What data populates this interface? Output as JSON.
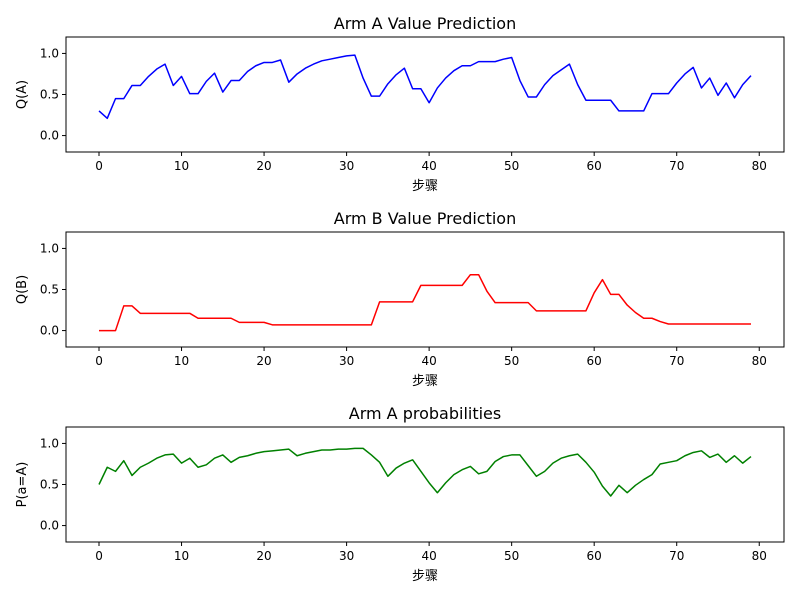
{
  "chart_data": [
    {
      "type": "line",
      "title": "Arm A Value Prediction",
      "xlabel": "步骤",
      "ylabel": "Q(A)",
      "xlim": [
        -4,
        83
      ],
      "ylim": [
        -0.2,
        1.2
      ],
      "xticks": [
        0,
        10,
        20,
        30,
        40,
        50,
        60,
        70,
        80
      ],
      "yticks": [
        0.0,
        0.5,
        1.0
      ],
      "grid": false,
      "series": [
        {
          "color": "#0000ff",
          "x": [
            0,
            1,
            2,
            3,
            4,
            5,
            6,
            7,
            8,
            9,
            10,
            11,
            12,
            13,
            14,
            15,
            16,
            17,
            18,
            19,
            20,
            21,
            22,
            23,
            24,
            25,
            26,
            27,
            28,
            29,
            30,
            31,
            32,
            33,
            34,
            35,
            36,
            37,
            38,
            39,
            40,
            41,
            42,
            43,
            44,
            45,
            46,
            47,
            48,
            49,
            50,
            51,
            52,
            53,
            54,
            55,
            56,
            57,
            58,
            59,
            60,
            61,
            62,
            63,
            64,
            65,
            66,
            67,
            68,
            69,
            70,
            71,
            72,
            73,
            74,
            75,
            76,
            77,
            78,
            79
          ],
          "values": [
            0.3,
            0.21,
            0.45,
            0.45,
            0.61,
            0.61,
            0.72,
            0.81,
            0.87,
            0.61,
            0.72,
            0.51,
            0.51,
            0.66,
            0.76,
            0.53,
            0.67,
            0.67,
            0.78,
            0.85,
            0.89,
            0.89,
            0.92,
            0.65,
            0.75,
            0.82,
            0.87,
            0.91,
            0.93,
            0.95,
            0.97,
            0.98,
            0.7,
            0.48,
            0.48,
            0.63,
            0.74,
            0.82,
            0.57,
            0.57,
            0.4,
            0.58,
            0.7,
            0.79,
            0.85,
            0.85,
            0.9,
            0.9,
            0.9,
            0.93,
            0.95,
            0.67,
            0.47,
            0.47,
            0.62,
            0.73,
            0.8,
            0.87,
            0.62,
            0.43,
            0.43,
            0.43,
            0.43,
            0.3,
            0.3,
            0.3,
            0.3,
            0.51,
            0.51,
            0.51,
            0.64,
            0.75,
            0.83,
            0.58,
            0.7,
            0.49,
            0.64,
            0.46,
            0.62,
            0.73
          ]
        }
      ]
    },
    {
      "type": "line",
      "title": "Arm B Value Prediction",
      "xlabel": "步骤",
      "ylabel": "Q(B)",
      "xlim": [
        -4,
        83
      ],
      "ylim": [
        -0.2,
        1.2
      ],
      "xticks": [
        0,
        10,
        20,
        30,
        40,
        50,
        60,
        70,
        80
      ],
      "yticks": [
        0.0,
        0.5,
        1.0
      ],
      "grid": false,
      "series": [
        {
          "color": "#ff0000",
          "x": [
            0,
            1,
            2,
            3,
            4,
            5,
            6,
            7,
            8,
            9,
            10,
            11,
            12,
            13,
            14,
            15,
            16,
            17,
            18,
            19,
            20,
            21,
            22,
            23,
            24,
            25,
            26,
            27,
            28,
            29,
            30,
            31,
            32,
            33,
            34,
            35,
            36,
            37,
            38,
            39,
            40,
            41,
            42,
            43,
            44,
            45,
            46,
            47,
            48,
            49,
            50,
            51,
            52,
            53,
            54,
            55,
            56,
            57,
            58,
            59,
            60,
            61,
            62,
            63,
            64,
            65,
            66,
            67,
            68,
            69,
            70,
            71,
            72,
            73,
            74,
            75,
            76,
            77,
            78,
            79
          ],
          "values": [
            0.0,
            0.0,
            0.0,
            0.3,
            0.3,
            0.21,
            0.21,
            0.21,
            0.21,
            0.21,
            0.21,
            0.21,
            0.15,
            0.15,
            0.15,
            0.15,
            0.15,
            0.1,
            0.1,
            0.1,
            0.1,
            0.07,
            0.07,
            0.07,
            0.07,
            0.07,
            0.07,
            0.07,
            0.07,
            0.07,
            0.07,
            0.07,
            0.07,
            0.07,
            0.35,
            0.35,
            0.35,
            0.35,
            0.35,
            0.55,
            0.55,
            0.55,
            0.55,
            0.55,
            0.55,
            0.68,
            0.68,
            0.48,
            0.34,
            0.34,
            0.34,
            0.34,
            0.34,
            0.24,
            0.24,
            0.24,
            0.24,
            0.24,
            0.24,
            0.24,
            0.46,
            0.62,
            0.44,
            0.44,
            0.31,
            0.22,
            0.15,
            0.15,
            0.11,
            0.08,
            0.08,
            0.08,
            0.08,
            0.08,
            0.08,
            0.08,
            0.08,
            0.08,
            0.08,
            0.08
          ]
        }
      ]
    },
    {
      "type": "line",
      "title": "Arm A probabilities",
      "xlabel": "步骤",
      "ylabel": "P(a=A)",
      "xlim": [
        -4,
        83
      ],
      "ylim": [
        -0.2,
        1.2
      ],
      "xticks": [
        0,
        10,
        20,
        30,
        40,
        50,
        60,
        70,
        80
      ],
      "yticks": [
        0.0,
        0.5,
        1.0
      ],
      "grid": false,
      "series": [
        {
          "color": "#008000",
          "x": [
            0,
            1,
            2,
            3,
            4,
            5,
            6,
            7,
            8,
            9,
            10,
            11,
            12,
            13,
            14,
            15,
            16,
            17,
            18,
            19,
            20,
            21,
            22,
            23,
            24,
            25,
            26,
            27,
            28,
            29,
            30,
            31,
            32,
            33,
            34,
            35,
            36,
            37,
            38,
            39,
            40,
            41,
            42,
            43,
            44,
            45,
            46,
            47,
            48,
            49,
            50,
            51,
            52,
            53,
            54,
            55,
            56,
            57,
            58,
            59,
            60,
            61,
            62,
            63,
            64,
            65,
            66,
            67,
            68,
            69,
            70,
            71,
            72,
            73,
            74,
            75,
            76,
            77,
            78,
            79
          ],
          "values": [
            0.5,
            0.71,
            0.66,
            0.79,
            0.61,
            0.71,
            0.76,
            0.82,
            0.86,
            0.87,
            0.76,
            0.82,
            0.71,
            0.74,
            0.82,
            0.86,
            0.77,
            0.83,
            0.85,
            0.88,
            0.9,
            0.91,
            0.92,
            0.93,
            0.85,
            0.88,
            0.9,
            0.92,
            0.92,
            0.93,
            0.93,
            0.94,
            0.94,
            0.86,
            0.77,
            0.6,
            0.7,
            0.76,
            0.8,
            0.66,
            0.52,
            0.4,
            0.52,
            0.62,
            0.68,
            0.72,
            0.63,
            0.66,
            0.78,
            0.84,
            0.86,
            0.86,
            0.73,
            0.6,
            0.66,
            0.76,
            0.82,
            0.85,
            0.87,
            0.77,
            0.65,
            0.48,
            0.36,
            0.49,
            0.4,
            0.49,
            0.56,
            0.62,
            0.75,
            0.77,
            0.79,
            0.85,
            0.89,
            0.91,
            0.83,
            0.87,
            0.77,
            0.85,
            0.76,
            0.84
          ]
        }
      ]
    }
  ]
}
